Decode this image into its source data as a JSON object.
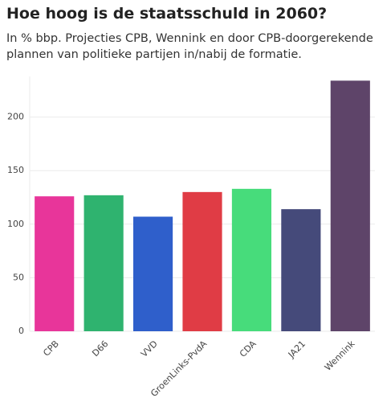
{
  "chart_data": {
    "type": "bar",
    "title": "Hoe hoog is de staatsschuld in 2060?",
    "subtitle": "In % bbp. Projecties CPB, Wennink en door CPB-doorgerekende plannen van politieke partijen in/nabij de formatie.",
    "categories": [
      "CPB",
      "D66",
      "VVD",
      "GroenLinks-PvdA",
      "CDA",
      "JA21",
      "Wennink"
    ],
    "values": [
      126,
      127,
      107,
      130,
      133,
      114,
      234
    ],
    "colors": [
      "#e8359a",
      "#2fb36f",
      "#2f5fcb",
      "#e03c45",
      "#47dc7b",
      "#454a7a",
      "#5e4469"
    ],
    "ylim": [
      0,
      238
    ],
    "yticks": [
      0,
      50,
      100,
      150,
      200
    ],
    "grid": true
  }
}
